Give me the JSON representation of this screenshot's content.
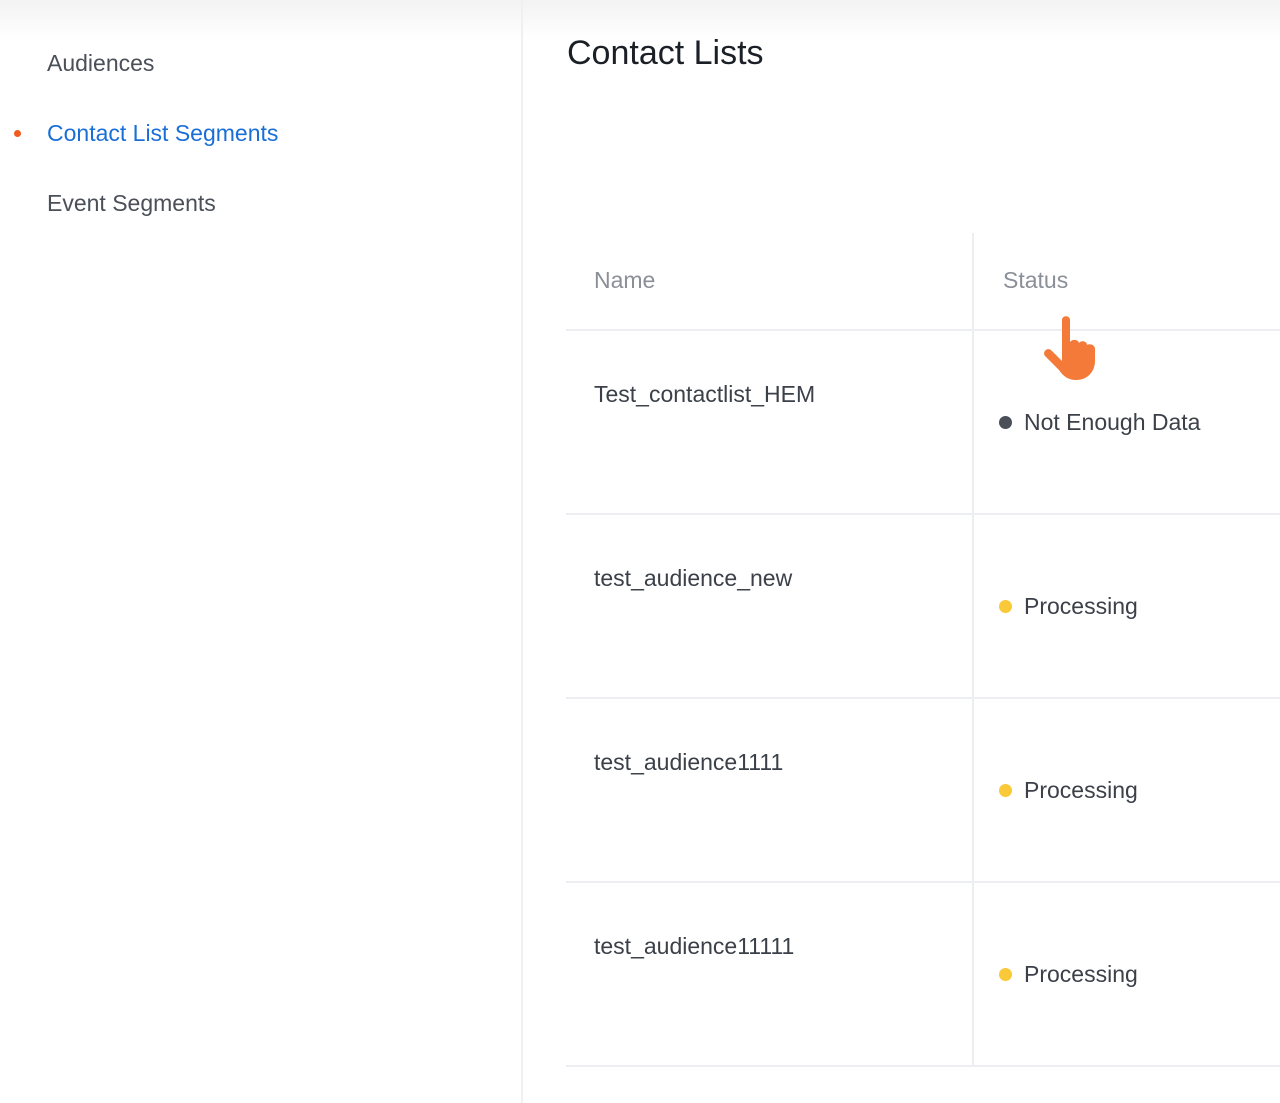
{
  "sidebar": {
    "items": [
      {
        "label": "Audiences"
      },
      {
        "label": "Contact List Segments",
        "active": true
      },
      {
        "label": "Event Segments"
      }
    ]
  },
  "page_title": "Contact Lists",
  "table": {
    "headers": [
      "Name",
      "Status"
    ],
    "rows": [
      {
        "name": "Test_contactlist_HEM",
        "status": "Not Enough Data",
        "status_color": "#4a4f58"
      },
      {
        "name": "test_audience_new",
        "status": "Processing",
        "status_color": "#f9c93a"
      },
      {
        "name": "test_audience1111",
        "status": "Processing",
        "status_color": "#f9c93a"
      },
      {
        "name": "test_audience11111",
        "status": "Processing",
        "status_color": "#f9c93a"
      }
    ]
  },
  "colors": {
    "accent": "#1a6fd6",
    "active_dot": "#f25a1f",
    "cursor": "#f47a3a"
  },
  "cursor_icon": "hand-pointer-icon"
}
